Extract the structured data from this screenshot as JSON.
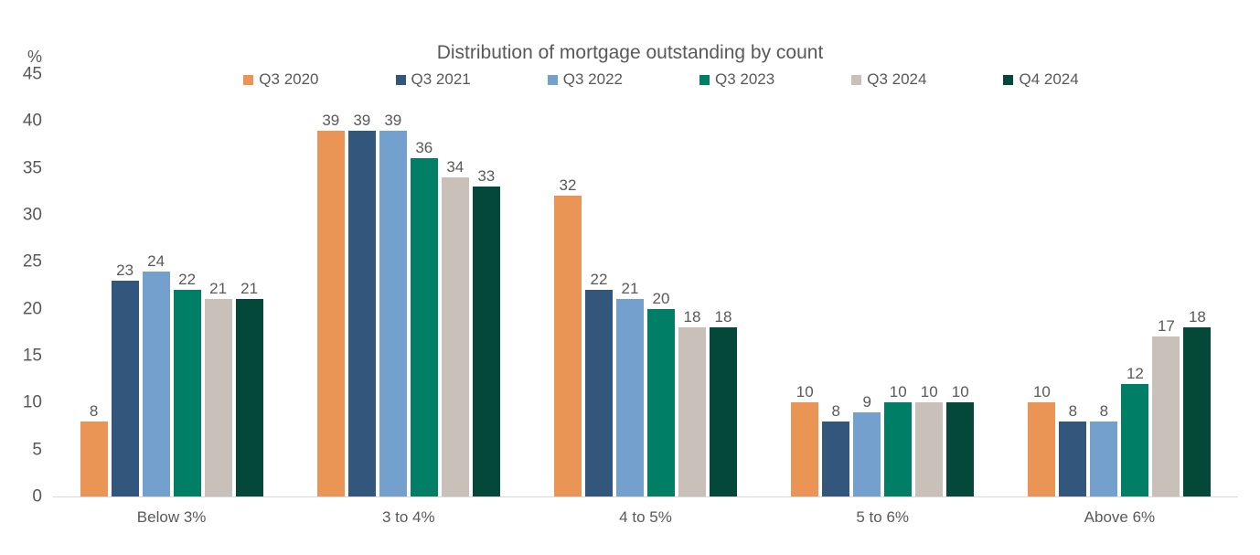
{
  "chart_data": {
    "type": "bar",
    "title": "Distribution of mortgage outstanding by count",
    "unit_label": "%",
    "categories": [
      "Below 3%",
      "3 to 4%",
      "4 to 5%",
      "5 to 6%",
      "Above 6%"
    ],
    "series": [
      {
        "name": "Q3 2020",
        "color": "#EA9456",
        "values": [
          8,
          39,
          32,
          10,
          10
        ]
      },
      {
        "name": "Q3 2021",
        "color": "#33567C",
        "values": [
          23,
          39,
          22,
          8,
          8
        ]
      },
      {
        "name": "Q3 2022",
        "color": "#74A0CE",
        "values": [
          24,
          39,
          21,
          9,
          8
        ]
      },
      {
        "name": "Q3 2023",
        "color": "#007E66",
        "values": [
          22,
          36,
          20,
          10,
          12
        ]
      },
      {
        "name": "Q3 2024",
        "color": "#C9C0BA",
        "values": [
          21,
          34,
          18,
          10,
          17
        ]
      },
      {
        "name": "Q4 2024",
        "color": "#04483A",
        "values": [
          21,
          33,
          18,
          10,
          18
        ]
      }
    ],
    "ylim": [
      0,
      45
    ],
    "yticks": [
      0,
      5,
      10,
      15,
      20,
      25,
      30,
      35,
      40,
      45
    ],
    "grid": "off",
    "legend_position": "top",
    "axis_color": "#d9d9d9",
    "text_color": "#595959",
    "xlabel": "",
    "ylabel": "%"
  }
}
